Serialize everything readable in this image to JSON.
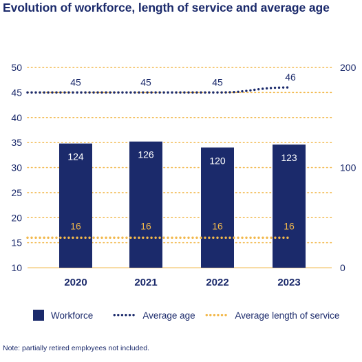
{
  "title": "Evolution of workforce, length of service and average age",
  "note": "Note: partially retired employees not included.",
  "colors": {
    "workforce": "#1b2a6b",
    "average_age": "#1b2a6b",
    "length_of_service": "#f2b84b",
    "gridline": "#f2b84b"
  },
  "legend": {
    "workforce": "Workforce",
    "average_age": "Average age",
    "length_of_service": "Average length of service",
    "dots": "••••••"
  },
  "chart_data": {
    "type": "bar",
    "categories": [
      "2020",
      "2021",
      "2022",
      "2023"
    ],
    "series": [
      {
        "name": "Workforce",
        "type": "bar",
        "axis": "right",
        "values": [
          124,
          126,
          120,
          123
        ]
      },
      {
        "name": "Average age",
        "type": "line",
        "style": "dotted",
        "axis": "left",
        "values": [
          45,
          45,
          45,
          46
        ]
      },
      {
        "name": "Average length of service",
        "type": "line",
        "style": "dotted",
        "axis": "left",
        "values": [
          16,
          16,
          16,
          16
        ]
      }
    ],
    "y_left": {
      "min": 10,
      "max": 50,
      "ticks": [
        "10",
        "15",
        "20",
        "25",
        "30",
        "35",
        "40",
        "45",
        "50"
      ]
    },
    "y_right": {
      "min": 0,
      "max": 200,
      "ticks": [
        "0",
        "100",
        "200"
      ]
    },
    "grid": true,
    "legend_position": "bottom"
  }
}
